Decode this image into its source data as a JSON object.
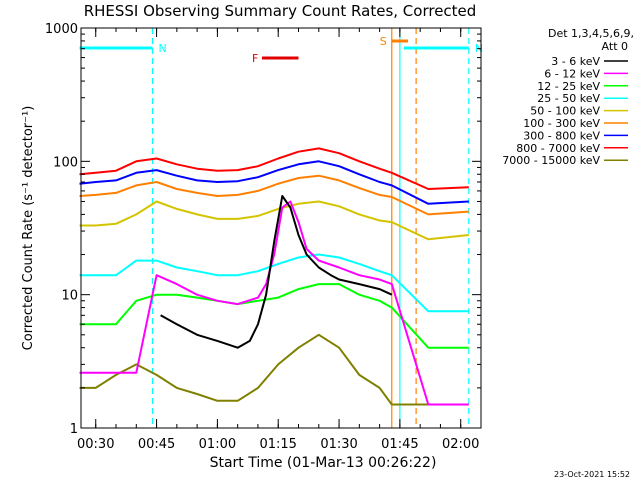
{
  "chart_data": {
    "type": "line",
    "title": "RHESSI Observing Summary Count Rates, Corrected",
    "xlabel": "Start Time (01-Mar-13 00:26:22)",
    "ylabel": "Corrected Count Rate (s⁻¹ detector⁻¹)",
    "y_scale": "log",
    "ylim": [
      1,
      1000
    ],
    "xlim": [
      "00:26:22",
      "02:05:00"
    ],
    "y_ticks": [
      "1",
      "10",
      "100",
      "1000"
    ],
    "x_ticks": [
      "00:30",
      "00:45",
      "01:00",
      "01:15",
      "01:30",
      "01:45",
      "02:00"
    ],
    "legend": {
      "header": "Det 1,3,4,5,6,9,",
      "attenuator": "Att 0",
      "position": "right"
    },
    "series": [
      {
        "name": "3 - 6 keV",
        "color": "#000000",
        "x": [
          "00:26",
          "00:30",
          "00:40",
          "00:45",
          "00:46",
          "00:50",
          "00:55",
          "01:00",
          "01:05",
          "01:08",
          "01:10",
          "01:12",
          "01:14",
          "01:16",
          "01:18",
          "01:20",
          "01:22",
          "01:25",
          "01:28",
          "01:30",
          "01:35",
          "01:40",
          "01:43"
        ],
        "y": [
          null,
          null,
          null,
          null,
          7,
          6,
          5,
          4.5,
          4,
          4.5,
          6,
          10,
          25,
          55,
          45,
          28,
          20,
          16,
          14,
          13,
          12,
          11,
          10
        ]
      },
      {
        "name": "6 - 12 keV",
        "color": "#ff00ff",
        "x": [
          "00:26",
          "00:30",
          "00:35",
          "00:40",
          "00:45",
          "00:50",
          "00:55",
          "01:00",
          "01:05",
          "01:10",
          "01:12",
          "01:14",
          "01:16",
          "01:18",
          "01:20",
          "01:22",
          "01:25",
          "01:30",
          "01:35",
          "01:40",
          "01:43",
          "01:52",
          "02:02"
        ],
        "y": [
          2.6,
          2.6,
          2.6,
          2.6,
          14,
          12,
          10,
          9,
          8.5,
          9.5,
          12,
          20,
          45,
          50,
          35,
          22,
          18,
          16,
          14,
          13,
          12,
          1.5,
          1.5
        ]
      },
      {
        "name": "12 - 25 keV",
        "color": "#00ff00",
        "x": [
          "00:26",
          "00:30",
          "00:35",
          "00:40",
          "00:45",
          "00:50",
          "00:55",
          "01:00",
          "01:05",
          "01:10",
          "01:15",
          "01:20",
          "01:25",
          "01:30",
          "01:35",
          "01:40",
          "01:43",
          "01:52",
          "02:02"
        ],
        "y": [
          6,
          6,
          6,
          9,
          10,
          10,
          9.5,
          9,
          8.5,
          9,
          9.5,
          11,
          12,
          12,
          10,
          9,
          8,
          4,
          4
        ]
      },
      {
        "name": "25 - 50 keV",
        "color": "#00ffff",
        "x": [
          "00:26",
          "00:30",
          "00:35",
          "00:40",
          "00:45",
          "00:50",
          "00:55",
          "01:00",
          "01:05",
          "01:10",
          "01:15",
          "01:20",
          "01:25",
          "01:30",
          "01:35",
          "01:40",
          "01:43",
          "01:52",
          "02:02"
        ],
        "y": [
          14,
          14,
          14,
          18,
          18,
          16,
          15,
          14,
          14,
          15,
          17,
          19,
          20,
          19,
          17,
          15,
          14,
          7.5,
          7.5
        ]
      },
      {
        "name": "50 - 100 keV",
        "color": "#d4c400",
        "x": [
          "00:26",
          "00:30",
          "00:35",
          "00:40",
          "00:45",
          "00:50",
          "00:55",
          "01:00",
          "01:05",
          "01:10",
          "01:15",
          "01:20",
          "01:25",
          "01:30",
          "01:35",
          "01:40",
          "01:43",
          "01:52",
          "02:02"
        ],
        "y": [
          33,
          33,
          34,
          40,
          50,
          44,
          40,
          37,
          37,
          39,
          44,
          48,
          50,
          46,
          40,
          36,
          35,
          26,
          28
        ]
      },
      {
        "name": "100 - 300 keV",
        "color": "#ff8000",
        "x": [
          "00:26",
          "00:30",
          "00:35",
          "00:40",
          "00:45",
          "00:50",
          "00:55",
          "01:00",
          "01:05",
          "01:10",
          "01:15",
          "01:20",
          "01:25",
          "01:30",
          "01:35",
          "01:40",
          "01:43",
          "01:52",
          "02:02"
        ],
        "y": [
          55,
          56,
          58,
          66,
          70,
          62,
          58,
          55,
          56,
          60,
          68,
          75,
          78,
          72,
          63,
          56,
          54,
          40,
          42
        ]
      },
      {
        "name": "300 - 800 keV",
        "color": "#0000ff",
        "x": [
          "00:26",
          "00:30",
          "00:35",
          "00:40",
          "00:45",
          "00:50",
          "00:55",
          "01:00",
          "01:05",
          "01:10",
          "01:15",
          "01:20",
          "01:25",
          "01:30",
          "01:35",
          "01:40",
          "01:43",
          "01:52",
          "02:02"
        ],
        "y": [
          68,
          70,
          72,
          82,
          86,
          78,
          72,
          70,
          71,
          76,
          86,
          95,
          100,
          92,
          80,
          70,
          66,
          48,
          50
        ]
      },
      {
        "name": "800 - 7000 keV",
        "color": "#ff0000",
        "x": [
          "00:26",
          "00:30",
          "00:35",
          "00:40",
          "00:45",
          "00:50",
          "00:55",
          "01:00",
          "01:05",
          "01:10",
          "01:15",
          "01:20",
          "01:25",
          "01:30",
          "01:35",
          "01:40",
          "01:43",
          "01:52",
          "02:02"
        ],
        "y": [
          80,
          82,
          85,
          100,
          105,
          95,
          88,
          85,
          86,
          92,
          105,
          118,
          125,
          115,
          100,
          88,
          82,
          62,
          64
        ]
      },
      {
        "name": "7000 - 15000 keV",
        "color": "#808000",
        "x": [
          "00:26",
          "00:30",
          "00:35",
          "00:40",
          "00:45",
          "00:50",
          "00:55",
          "01:00",
          "01:05",
          "01:10",
          "01:15",
          "01:20",
          "01:25",
          "01:30",
          "01:35",
          "01:40",
          "01:43",
          "01:52",
          "02:02"
        ],
        "y": [
          2,
          2,
          2.5,
          3,
          2.5,
          2,
          1.8,
          1.6,
          1.6,
          2,
          3,
          4,
          5,
          4,
          2.5,
          2,
          1.5,
          1.5,
          1.5
        ]
      }
    ],
    "observing_flags": [
      {
        "label": "N",
        "color": "#00ffff",
        "start": "00:26",
        "end": "00:44"
      },
      {
        "label": "N",
        "color": "#00ffff",
        "start": "01:46",
        "end": "02:02"
      },
      {
        "label": "F",
        "color": "#e00000",
        "start": "01:11",
        "end": "01:20"
      },
      {
        "label": "S",
        "color": "#ff8000",
        "start": "01:43",
        "end": "01:47"
      }
    ],
    "vertical_markers": [
      {
        "time": "00:44",
        "color": "#00ffff",
        "style": "dashed"
      },
      {
        "time": "01:43",
        "color": "#ff8000",
        "style": "solid"
      },
      {
        "time": "01:45",
        "color": "#00ffff",
        "style": "solid"
      },
      {
        "time": "01:49",
        "color": "#ff8000",
        "style": "dashed"
      },
      {
        "time": "02:02",
        "color": "#00ffff",
        "style": "dashed"
      }
    ],
    "footer_date": "23-Oct-2021 15:52"
  }
}
